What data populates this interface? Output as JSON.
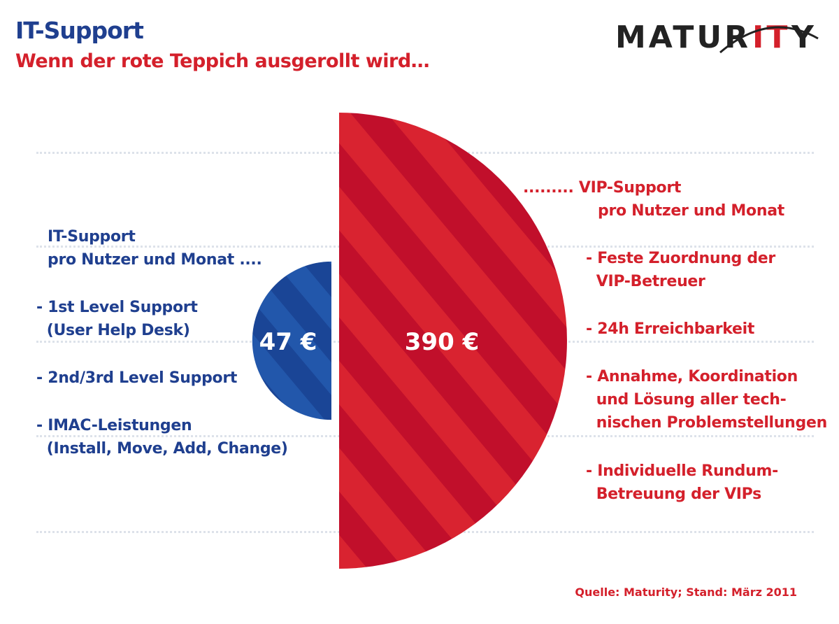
{
  "header": {
    "title": "IT-Support",
    "subtitle": "Wenn der rote Teppich ausgerollt wird…",
    "logo": "MATURITY"
  },
  "colors": {
    "blue": "#1f3f8f",
    "red": "#d4202b",
    "blue_fill": "#1d4e9e",
    "red_fill": "#c8102e"
  },
  "chart_data": {
    "type": "pie",
    "subtype": "half-circles-area-comparison",
    "categories": [
      "IT-Support pro Nutzer und Monat",
      "VIP-Support pro Nutzer und Monat"
    ],
    "values": [
      47,
      390
    ],
    "value_labels": [
      "47 €",
      "390 €"
    ],
    "unit": "€"
  },
  "left": {
    "heading": [
      "IT-Support",
      "pro Nutzer und Monat ...."
    ],
    "items": [
      "- 1st Level Support\n  (User Help Desk)",
      "- 2nd/3rd Level Support",
      "- IMAC-Leistungen\n  (Install, Move, Add, Change)"
    ]
  },
  "right": {
    "heading": [
      "......... VIP-Support",
      "pro Nutzer und Monat"
    ],
    "items": [
      "- Feste Zuordnung der\n  VIP-Betreuer",
      "- 24h Erreichbarkeit",
      "- Annahme, Koordination\n  und Lösung aller tech-\n  nischen Problemstellungen",
      "- Individuelle Rundum-\n  Betreuung der VIPs"
    ]
  },
  "source": "Quelle: Maturity; Stand: März 2011"
}
